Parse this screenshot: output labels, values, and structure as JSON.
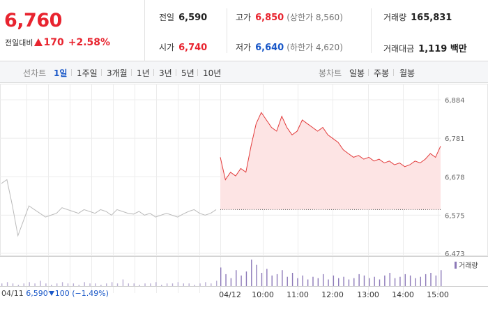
{
  "summary": {
    "price": "6,760",
    "change_label": "전일대비",
    "change_value": "170",
    "change_pct": "+2.58%",
    "prev_close": {
      "label": "전일",
      "value": "6,590"
    },
    "open": {
      "label": "시가",
      "value": "6,740"
    },
    "high": {
      "label": "고가",
      "value": "6,850",
      "sub": "(상한가 8,560)"
    },
    "low": {
      "label": "저가",
      "value": "6,640",
      "sub": "(하한가 4,620)"
    },
    "volume": {
      "label": "거래량",
      "value": "165,831"
    },
    "amount": {
      "label": "거래대금",
      "value": "1,119 백만"
    }
  },
  "tabs": {
    "line_label": "선차트",
    "periods": [
      "1일",
      "1주일",
      "3개월",
      "1년",
      "3년",
      "5년",
      "10년"
    ],
    "selected": "1일",
    "candle_label": "봉차트",
    "candles": [
      "일봉",
      "주봉",
      "월봉"
    ]
  },
  "colors": {
    "up": "#e8242f",
    "down": "#1a58c8",
    "prev_line": "#bbbbbb",
    "today_line": "#e23a3a",
    "today_fill": "#fde4e4",
    "volume": "#8c79b8"
  },
  "chart_data": {
    "type": "line",
    "yticks": [
      "6,884",
      "6,781",
      "6,678",
      "6,575",
      "6,473"
    ],
    "ylim": [
      6473,
      6884
    ],
    "baseline": 6590,
    "xticks": [
      "04/12",
      "10:00",
      "11:00",
      "12:00",
      "13:00",
      "14:00",
      "15:00"
    ],
    "prev_day": {
      "date": "04/11",
      "close": "6,590",
      "change": "100",
      "change_pct": "(−1.49%)",
      "values": [
        6660,
        6670,
        6600,
        6520,
        6560,
        6600,
        6590,
        6580,
        6570,
        6575,
        6580,
        6595,
        6590,
        6585,
        6580,
        6590,
        6585,
        6580,
        6590,
        6585,
        6575,
        6590,
        6585,
        6580,
        6578,
        6585,
        6575,
        6580,
        6570,
        6575,
        6580,
        6575,
        6570,
        6578,
        6585,
        6590,
        6580,
        6575,
        6580,
        6590
      ]
    },
    "today": {
      "series_name": "",
      "values": [
        6730,
        6670,
        6690,
        6680,
        6700,
        6690,
        6760,
        6820,
        6850,
        6830,
        6810,
        6800,
        6840,
        6810,
        6790,
        6800,
        6830,
        6820,
        6810,
        6800,
        6810,
        6790,
        6780,
        6770,
        6750,
        6740,
        6730,
        6735,
        6725,
        6730,
        6720,
        6725,
        6715,
        6720,
        6710,
        6715,
        6705,
        6710,
        6720,
        6715,
        6725,
        6740,
        6730,
        6760
      ]
    },
    "volume": {
      "label": "거래량",
      "prev": [
        2,
        3,
        2,
        1,
        2,
        3,
        2,
        4,
        2,
        1,
        2,
        3,
        2,
        2,
        1,
        3,
        2,
        2,
        1,
        2,
        3,
        2,
        5,
        2,
        2,
        1,
        2,
        2,
        3,
        1,
        2,
        2,
        3,
        2,
        2,
        1,
        2,
        3,
        2,
        4
      ],
      "today": [
        14,
        9,
        6,
        12,
        8,
        11,
        20,
        16,
        10,
        13,
        8,
        9,
        12,
        7,
        10,
        6,
        8,
        5,
        7,
        6,
        9,
        5,
        8,
        6,
        7,
        5,
        6,
        9,
        8,
        6,
        7,
        5,
        8,
        10,
        6,
        7,
        9,
        8,
        6,
        7,
        9,
        10,
        8,
        12
      ]
    }
  }
}
